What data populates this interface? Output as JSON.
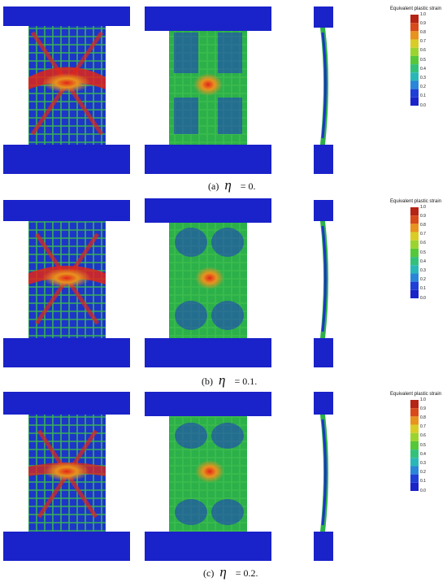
{
  "legend": {
    "title": "Equivalent plastic strain",
    "ticks": [
      "1.0",
      "0.9",
      "0.8",
      "0.7",
      "0.6",
      "0.5",
      "0.4",
      "0.3",
      "0.2",
      "0.1",
      "0.0"
    ],
    "colors": [
      "#b52414",
      "#d84a1a",
      "#e8931e",
      "#d9cd25",
      "#9bd42f",
      "#55c83a",
      "#33c17a",
      "#2ab7b8",
      "#2b85d9",
      "#1f3fd6",
      "#1b24c8"
    ]
  },
  "panels": [
    {
      "label": "(a)",
      "symbol": "η",
      "value": "= 0."
    },
    {
      "label": "(b)",
      "symbol": "η",
      "value": "= 0.1."
    },
    {
      "label": "(c)",
      "symbol": "η",
      "value": "= 0.2."
    }
  ],
  "colors": {
    "plate": "#1a22c9",
    "background": "#1b34c4",
    "high_strain": "#e2251a",
    "mid_strain": "#3fbf3f"
  }
}
